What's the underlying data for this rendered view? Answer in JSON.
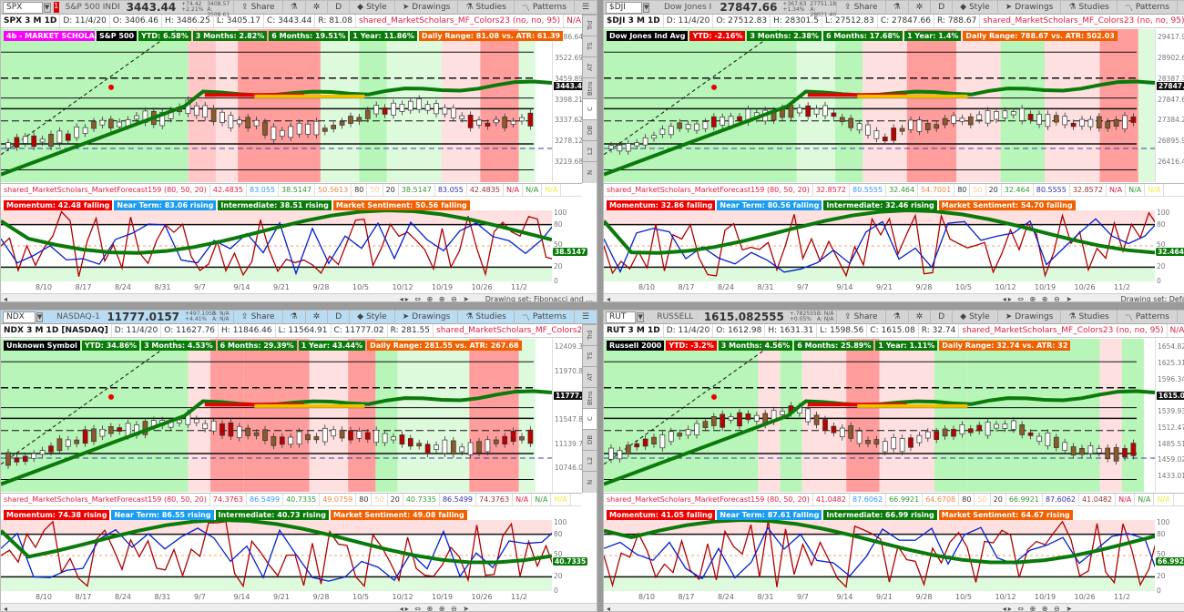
{
  "panes": [
    {
      "symbol": "SPX",
      "description": "S&P 500 INDEX",
      "last": "3443.44",
      "change": "+74.42",
      "change_pct": "+2.21%",
      "bid": "B: 3408.57",
      "ask": "A: 3508.61",
      "link_marker": "1",
      "toolbar": {
        "share": "Share",
        "period": "D",
        "style": "Style",
        "drawings": "Drawings",
        "studies": "Studies",
        "patterns": "Patterns"
      },
      "info": {
        "ticker": "SPX 3 M 1D",
        "date": "D: 11/4/20",
        "open": "O: 3406.46",
        "high": "H: 3486.25",
        "low": "L: 3405.17",
        "close": "C: 3443.44",
        "range": "R: 81.08",
        "study": "shared_MarketScholars_MF_Colors23 (no, no, 95)",
        "na1": "N/A",
        "na2": "N/A",
        "na3": "N/A",
        "na4": "N/A",
        "na5": "N/A",
        "more": "..."
      },
      "badges": [
        {
          "text": "4b - MARKET SCHOLARS",
          "color": "mag"
        },
        {
          "text": "S&P 500",
          "color": "blk"
        },
        {
          "text": "YTD: 6.58%",
          "color": "grn"
        },
        {
          "text": "3 Months: 2.82%",
          "color": "grn"
        },
        {
          "text": "6 Months: 19.51%",
          "color": "grn"
        },
        {
          "text": "1 Year: 11.86%",
          "color": "grn"
        },
        {
          "text": "Daily Range: 81.08 vs. ATR: 61.39",
          "color": "org"
        }
      ],
      "price_axis": [
        "3586.64",
        "3522.69",
        "3459.89",
        "3398.21",
        "3337.62",
        "3278.12",
        "3219.68"
      ],
      "current_price": "3443.44",
      "levels": [
        "$3507.08",
        "$3448.46",
        "$3398.78",
        "$3354.1",
        "$3298.81",
        "$3209.45"
      ],
      "fib": [
        "100.0%",
        "78.6%",
        "61.8%",
        "50.0%",
        "38.2%",
        "23.6%",
        "0.0%",
        "23.6% ($3258.6)",
        "261.8% ($-67.27)"
      ],
      "side_tabs": [
        "Trd",
        "TS",
        "AT",
        "Btns",
        "C",
        "DB",
        "L2",
        "N"
      ],
      "study_row": {
        "name": "shared_MarketScholars_MarketForecast159 (80, 50, 20)",
        "values": [
          "42.4835",
          "83.055",
          "38.5147",
          "50.5613",
          "80",
          "50",
          "20",
          "38.5147",
          "83.055",
          "42.4835",
          "N/A",
          "N/A",
          "N/A"
        ]
      },
      "labels": [
        {
          "text": "Momentum: 42.48  falling",
          "color": "red"
        },
        {
          "text": "Near Term: 83.06  rising",
          "color": "blu"
        },
        {
          "text": "Intermediate: 38.51  rising",
          "color": "grn"
        },
        {
          "text": "Market Sentiment: 50.56  falling",
          "color": "org"
        }
      ],
      "osc_axis": [
        "100",
        "80",
        "50",
        "20",
        "0"
      ],
      "osc_current": "38.5147",
      "dates": [
        "8/10",
        "8/17",
        "8/24",
        "8/31",
        "9/7",
        "9/14",
        "9/21",
        "9/28",
        "10/5",
        "10/12",
        "10/19",
        "10/26",
        "11/2"
      ],
      "drawing_set": "Drawing set: Fibonacci and ..."
    },
    {
      "symbol": "$DJI",
      "description": "Dow Jones Industri...",
      "last": "27847.66",
      "change": "+367.63",
      "change_pct": "+1.34%",
      "bid": "B: 27751.18",
      "ask": "A: 28021.40",
      "link_marker": "",
      "toolbar": {
        "share": "Share",
        "period": "D",
        "style": "Style",
        "drawings": "Drawings",
        "studies": "Studies",
        "patterns": "Patterns"
      },
      "info": {
        "ticker": "$DJI 3 M 1D",
        "date": "D: 11/4/20",
        "open": "O: 27512.83",
        "high": "H: 28301.5",
        "low": "L: 27512.83",
        "close": "C: 27847.66",
        "range": "R: 788.67",
        "study": "shared_MarketScholars_MF_Colors23 (no, no, 95)",
        "na1": "N/A",
        "na2": "N/A",
        "na3": "N/A",
        "na4": "N/A",
        "na5": "",
        "more": "..."
      },
      "badges": [
        {
          "text": "Dow Jones Ind Avg",
          "color": "blk"
        },
        {
          "text": "YTD: -2.16%",
          "color": "red"
        },
        {
          "text": "3 Months: 2.38%",
          "color": "grn"
        },
        {
          "text": "6 Months: 17.68%",
          "color": "grn"
        },
        {
          "text": "1 Year: 1.4%",
          "color": "grn"
        },
        {
          "text": "Daily Range: 788.67 vs. ATR: 502.03",
          "color": "org"
        }
      ],
      "price_axis": [
        "29417.9",
        "28902.64",
        "28387.36",
        "27847.66",
        "27384.2",
        "26895.99",
        "26416.48"
      ],
      "current_price": "27847.66",
      "levels": [
        "$29162.88",
        "$27138.62",
        "$26578.86",
        "$-17218.06"
      ],
      "fib": [
        "78.6%",
        "23.6%",
        "423.6%"
      ],
      "side_tabs": [
        "Trd",
        "TS",
        "AT",
        "Btns",
        "C",
        "DB",
        "L2",
        "N"
      ],
      "study_row": {
        "name": "shared_MarketScholars_MarketForecast159 (80, 50, 20)",
        "values": [
          "32.8572",
          "80.5555",
          "32.464",
          "54.7001",
          "80",
          "50",
          "20",
          "32.464",
          "80.5555",
          "32.8572",
          "N/A",
          "N/A",
          "N/A"
        ]
      },
      "labels": [
        {
          "text": "Momentum: 32.86  falling",
          "color": "red"
        },
        {
          "text": "Near Term: 80.56  falling",
          "color": "blu"
        },
        {
          "text": "Intermediate: 32.46  rising",
          "color": "grn"
        },
        {
          "text": "Market Sentiment: 54.70  falling",
          "color": "org"
        }
      ],
      "osc_axis": [
        "100",
        "80",
        "50",
        "20",
        "0"
      ],
      "osc_current": "32.464",
      "dates": [
        "8/10",
        "8/17",
        "8/24",
        "8/31",
        "9/7",
        "9/14",
        "9/21",
        "9/28",
        "10/5",
        "10/12",
        "10/19",
        "10/26",
        "11/2"
      ],
      "drawing_set": "Drawing set: Default"
    },
    {
      "symbol": "NDX",
      "description": "NASDAQ-100 INDE...",
      "last": "11777.0157",
      "change": "+497.1058",
      "change_pct": "+4.41%",
      "bid": "B: N/A",
      "ask": "A: N/A",
      "link_marker": "",
      "toolbar": {
        "share": "Share",
        "period": "D",
        "style": "Style",
        "drawings": "Drawings",
        "studies": "Studies",
        "patterns": "Patterns"
      },
      "info": {
        "ticker": "NDX 3 M 1D [NASDAQ]",
        "date": "D: 11/4/20",
        "open": "O: 11627.76",
        "high": "H: 11846.46",
        "low": "L: 11564.91",
        "close": "C: 11777.02",
        "range": "R: 281.55",
        "study": "shared_MarketScholars_MF_Colors23 (no, no, 95)",
        "na1": "N/A",
        "na2": "N/A",
        "na3": "",
        "na4": "",
        "na5": "",
        "more": "..."
      },
      "badges": [
        {
          "text": "Unknown Symbol",
          "color": "blk"
        },
        {
          "text": "YTD: 34.86%",
          "color": "grn"
        },
        {
          "text": "3 Months: 4.53%",
          "color": "grn"
        },
        {
          "text": "6 Months: 29.39%",
          "color": "grn"
        },
        {
          "text": "1 Year: 43.44%",
          "color": "grn"
        },
        {
          "text": "Daily Range: 281.55 vs. ATR: 267.68",
          "color": "org"
        }
      ],
      "price_axis": [
        "12409.38",
        "11970.85",
        "11777.02",
        "11547.82",
        "11139.74",
        "10746.08"
      ],
      "current_price": "11777.02",
      "levels": [
        "$12062.49",
        "$11766.54",
        "$11558.68",
        "$11350.79",
        "$11093.59",
        "$10677.85",
        "$-2390.21"
      ],
      "fib": [
        "161.8%",
        "61.8%",
        "50.0%",
        "38.2%",
        "23.6%",
        "0.0%",
        "261.8%"
      ],
      "side_tabs": [
        "Trd",
        "TS",
        "AT",
        "Btns",
        "C",
        "DB",
        "L2",
        "N"
      ],
      "study_row": {
        "name": "shared_MarketScholars_MarketForecast159 (80, 50, 20)",
        "values": [
          "74.3763",
          "86.5499",
          "40.7335",
          "49.0759",
          "80",
          "50",
          "20",
          "40.7335",
          "86.5499",
          "74.3763",
          "N/A",
          "N/A",
          "N/A"
        ]
      },
      "labels": [
        {
          "text": "Momentum: 74.38  rising",
          "color": "red"
        },
        {
          "text": "Near Term: 86.55  rising",
          "color": "blu"
        },
        {
          "text": "Intermediate: 40.73  rising",
          "color": "grn"
        },
        {
          "text": "Market Sentiment: 49.08  falling",
          "color": "org"
        }
      ],
      "osc_axis": [
        "100",
        "80",
        "50",
        "20",
        "0"
      ],
      "osc_current": "40.7335",
      "dates": [
        "8/10",
        "8/17",
        "8/24",
        "8/31",
        "9/7",
        "9/14",
        "9/21",
        "9/28",
        "10/5",
        "10/12",
        "10/19",
        "10/26",
        "11/2"
      ],
      "drawing_set": ""
    },
    {
      "symbol": "RUT",
      "description": "RUSSELL 2000 IND...",
      "last": "1615.082555",
      "change": "+.782555",
      "change_pct": "+0.05%",
      "bid": "B: N/A",
      "ask": "A: N/A",
      "link_marker": "",
      "toolbar": {
        "share": "Share",
        "period": "D",
        "style": "Style",
        "drawings": "Drawings",
        "studies": "Studies",
        "patterns": "Patterns"
      },
      "info": {
        "ticker": "RUT 3 M 1D",
        "date": "D: 11/4/20",
        "open": "O: 1612.98",
        "high": "H: 1631.31",
        "low": "L: 1598.56",
        "close": "C: 1615.08",
        "range": "R: 32.74",
        "study": "shared_MarketScholars_MF_Colors23 (no, no, 95)",
        "na1": "N/A",
        "na2": "N/A",
        "na3": "N/A",
        "na4": "N/A",
        "na5": "N/A",
        "more": "..."
      },
      "badges": [
        {
          "text": "Russell 2000",
          "color": "blk"
        },
        {
          "text": "YTD: -3.2%",
          "color": "red"
        },
        {
          "text": "3 Months: 4.56%",
          "color": "grn"
        },
        {
          "text": "6 Months: 25.89%",
          "color": "grn"
        },
        {
          "text": "1 Year: 1.11%",
          "color": "grn"
        },
        {
          "text": "Daily Range: 32.74 vs. ATR: 32",
          "color": "org"
        }
      ],
      "price_axis": [
        "1654.82",
        "1625.31",
        "1596.34",
        "1567.88",
        "1539.93",
        "1512.47",
        "1485.51",
        "1459.02",
        "1433.01"
      ],
      "current_price": "1615.08",
      "levels": [
        "$1652.95",
        "$1542.12",
        "$1490.24",
        "$-142.92",
        "$1414.07"
      ],
      "fib": [
        "78.6%",
        "23.6%",
        "61.8%"
      ],
      "side_tabs": [
        "Trd",
        "TS",
        "AT",
        "Btns",
        "C",
        "DB",
        "L2",
        "N"
      ],
      "study_row": {
        "name": "shared_MarketScholars_MarketForecast159 (80, 50, 20)",
        "values": [
          "41.0482",
          "87.6062",
          "66.9921",
          "64.6708",
          "80",
          "50",
          "20",
          "66.9921",
          "87.6062",
          "41.0482",
          "N/A",
          "N/A",
          "N/A"
        ]
      },
      "labels": [
        {
          "text": "Momentum: 41.05  falling",
          "color": "red"
        },
        {
          "text": "Near Term: 87.61  falling",
          "color": "blu"
        },
        {
          "text": "Intermediate: 66.99  rising",
          "color": "grn"
        },
        {
          "text": "Market Sentiment: 64.67  rising",
          "color": "org"
        }
      ],
      "osc_axis": [
        "100",
        "80",
        "50",
        "20",
        "0"
      ],
      "osc_current": "66.9921",
      "dates": [
        "8/10",
        "8/17",
        "8/24",
        "8/31",
        "9/7",
        "9/14",
        "9/21",
        "9/28",
        "10/5",
        "10/12",
        "10/19",
        "10/26",
        "11/2"
      ],
      "drawing_set": ""
    }
  ],
  "colors": {
    "bull_zone": "#b8f5b8",
    "bear_zone": "#ff9d9d",
    "light_bull": "#ddfadd",
    "light_bear": "#ffe0e0",
    "momentum": "#b00000",
    "near_term": "#0020d0",
    "intermediate": "#0a7a0a",
    "badge_orange": "#f06000"
  }
}
